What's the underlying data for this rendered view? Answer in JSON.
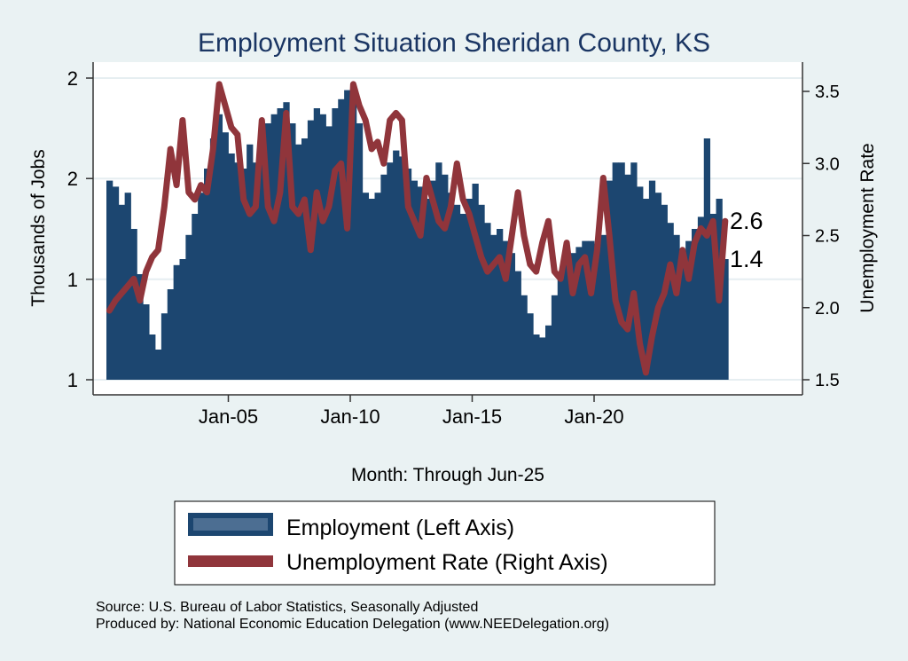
{
  "chart_data": {
    "type": "bar+line",
    "title": "Employment Situation Sheridan  County, KS",
    "xlabel": "Month: Through Jun-25",
    "ylabel_left": "Thousands of Jobs",
    "ylabel_right": "Unemployment Rate",
    "x_start": "2000Q1",
    "frequency": "quarterly (approximated from monthly chart)",
    "x_ticks": [
      "Jan-05",
      "Jan-10",
      "Jan-15",
      "Jan-20"
    ],
    "y_left_ticks": [
      "2",
      "2",
      "1",
      "1"
    ],
    "y_left_tick_values": [
      2.0,
      1.667,
      1.333,
      1.0
    ],
    "ylim_left": [
      1.0,
      2.0
    ],
    "y_right_ticks": [
      "3.5",
      "3.0",
      "2.5",
      "2.0",
      "1.5"
    ],
    "ylim_right": [
      1.5,
      3.5
    ],
    "grid": "horizontal at left-axis ticks",
    "legend_placement": "bottom",
    "series": [
      {
        "name": "Employment (Left Axis)",
        "kind": "bar",
        "color": "#1c4670",
        "values": [
          1.66,
          1.64,
          1.58,
          1.62,
          1.5,
          1.35,
          1.25,
          1.15,
          1.1,
          1.22,
          1.3,
          1.38,
          1.4,
          1.48,
          1.55,
          1.62,
          1.7,
          1.8,
          1.88,
          1.82,
          1.75,
          1.72,
          1.7,
          1.78,
          1.72,
          1.78,
          1.85,
          1.88,
          1.9,
          1.92,
          1.85,
          1.78,
          1.8,
          1.86,
          1.9,
          1.88,
          1.84,
          1.9,
          1.93,
          1.96,
          1.95,
          1.85,
          1.62,
          1.6,
          1.62,
          1.68,
          1.72,
          1.76,
          1.74,
          1.7,
          1.66,
          1.64,
          1.6,
          1.66,
          1.72,
          1.68,
          1.62,
          1.58,
          1.55,
          1.6,
          1.65,
          1.58,
          1.52,
          1.48,
          1.5,
          1.46,
          1.42,
          1.36,
          1.28,
          1.22,
          1.15,
          1.14,
          1.18,
          1.28,
          1.34,
          1.4,
          1.42,
          1.44,
          1.46,
          1.46,
          1.45,
          1.48,
          1.66,
          1.72,
          1.72,
          1.68,
          1.72,
          1.64,
          1.6,
          1.66,
          1.62,
          1.58,
          1.52,
          1.48,
          1.42,
          1.46,
          1.5,
          1.54,
          1.8,
          1.55,
          1.6,
          1.4
        ]
      },
      {
        "name": "Unemployment Rate (Right Axis)",
        "kind": "line",
        "color": "#90353b",
        "values": [
          1.98,
          2.05,
          2.1,
          2.15,
          2.2,
          2.05,
          2.25,
          2.35,
          2.4,
          2.7,
          3.1,
          2.85,
          3.3,
          2.8,
          2.75,
          2.85,
          2.8,
          3.1,
          3.55,
          3.4,
          3.25,
          3.2,
          2.75,
          2.65,
          2.7,
          3.3,
          2.7,
          2.6,
          2.8,
          3.35,
          2.7,
          2.65,
          2.75,
          2.4,
          2.8,
          2.6,
          2.7,
          2.95,
          3.0,
          2.55,
          3.55,
          3.4,
          3.3,
          3.1,
          3.15,
          3.0,
          3.3,
          3.35,
          3.3,
          2.7,
          2.6,
          2.5,
          2.9,
          2.75,
          2.6,
          2.55,
          2.7,
          3.0,
          2.75,
          2.65,
          2.5,
          2.35,
          2.25,
          2.3,
          2.35,
          2.2,
          2.5,
          2.8,
          2.5,
          2.3,
          2.25,
          2.45,
          2.6,
          2.25,
          2.2,
          2.45,
          2.1,
          2.3,
          2.35,
          2.1,
          2.4,
          2.9,
          2.5,
          2.05,
          1.9,
          1.85,
          2.1,
          1.75,
          1.55,
          1.8,
          2.0,
          2.1,
          2.3,
          2.1,
          2.4,
          2.2,
          2.45,
          2.55,
          2.5,
          2.6,
          2.05,
          2.6
        ]
      }
    ],
    "end_labels": {
      "unemployment": "2.6",
      "employment": "1.4"
    },
    "source_lines": [
      "Source: U.S. Bureau of Labor Statistics, Seasonally Adjusted",
      "Produced by: National Economic Education Delegation (www.NEEDelegation.org)"
    ]
  }
}
